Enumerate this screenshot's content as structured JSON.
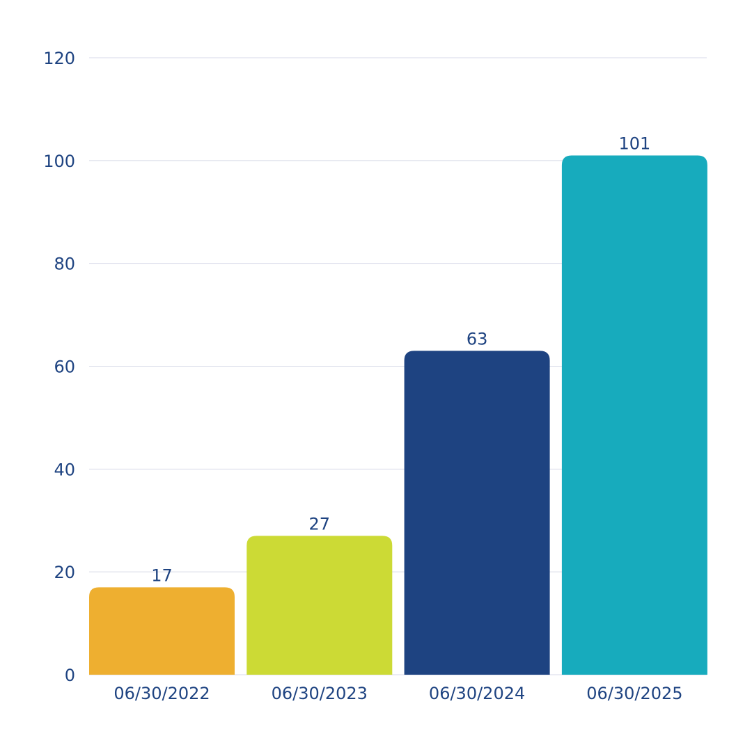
{
  "chart_data": {
    "type": "bar",
    "categories": [
      "06/30/2022",
      "06/30/2023",
      "06/30/2024",
      "06/30/2025"
    ],
    "values": [
      17,
      27,
      63,
      101
    ],
    "colors": [
      "#eeaf30",
      "#ccda35",
      "#1e4381",
      "#17abbd"
    ],
    "title": "",
    "xlabel": "",
    "ylabel": "",
    "ylim": [
      0,
      120
    ],
    "yticks": [
      0,
      20,
      40,
      60,
      80,
      100,
      120
    ],
    "data_labels": true,
    "grid": true,
    "text_color": "#1e4381",
    "grid_color": "#d7dae8"
  }
}
